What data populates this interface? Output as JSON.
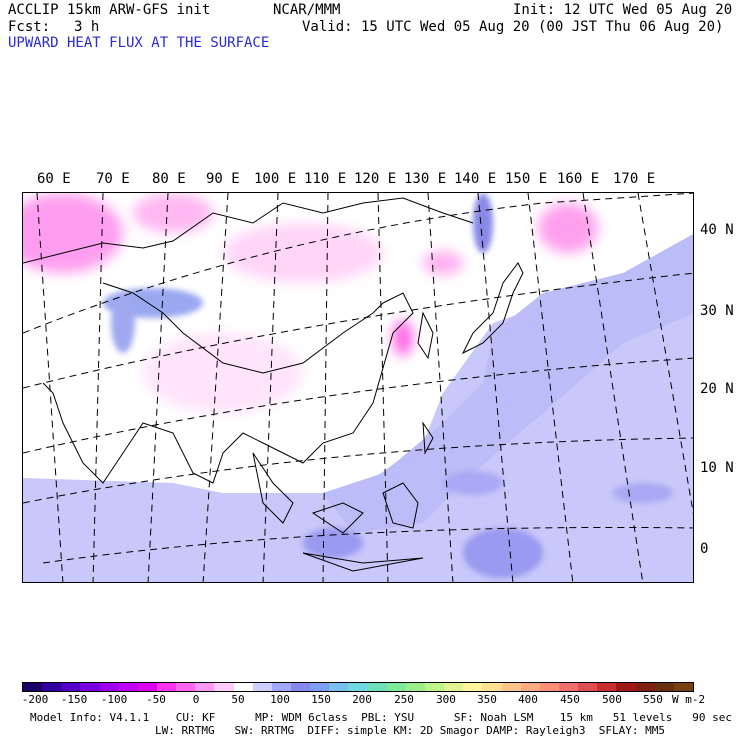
{
  "header": {
    "model": "ACCLIP 15km ARW-GFS init",
    "center": "NCAR/MMM",
    "init": "Init: 12 UTC Wed 05 Aug 20",
    "fcst_label": "Fcst:",
    "fcst_value": "3 h",
    "valid": "Valid: 15 UTC Wed 05 Aug 20 (00 JST Thu 06 Aug 20)",
    "field": "UPWARD HEAT FLUX AT THE SURFACE"
  },
  "longitude_labels": [
    "60 E",
    "70 E",
    "80 E",
    "90 E",
    "100 E",
    "110 E",
    "120 E",
    "130 E",
    "140 E",
    "150 E",
    "160 E",
    "170 E"
  ],
  "latitude_labels": [
    "40 N",
    "30 N",
    "20 N",
    "10 N",
    "0"
  ],
  "colorbar": {
    "ticks": [
      "-200",
      "-150",
      "-100",
      "-50",
      "0",
      "50",
      "100",
      "150",
      "200",
      "250",
      "300",
      "350",
      "400",
      "450",
      "500",
      "550"
    ],
    "unit": "W m-2",
    "range": [
      -200,
      600
    ],
    "colors": [
      "#1a0066",
      "#3300a0",
      "#5500c8",
      "#7a00e0",
      "#a000f0",
      "#c000f5",
      "#e000f0",
      "#ff33ee",
      "#ff66f0",
      "#ff99f5",
      "#ffccfa",
      "#ffffff",
      "#ccd0ff",
      "#a0a8ff",
      "#8888f0",
      "#7f9ff5",
      "#77c0f0",
      "#70d8e0",
      "#6ee0b8",
      "#7fe89a",
      "#99f088",
      "#bff588",
      "#e0f590",
      "#fff59a",
      "#ffe090",
      "#ffc488",
      "#ffaa80",
      "#ff9078",
      "#f07070",
      "#e05050",
      "#c83030",
      "#a01818",
      "#802010",
      "#683010",
      "#7a4010"
    ]
  },
  "footer": {
    "line1": "Model Info: V4.1.1    CU: KF      MP: WDM 6class  PBL: YSU      SF: Noah LSM    15 km   51 levels   90 sec",
    "line2": "LW: RRTMG   SW: RRTMG  DIFF: simple KM: 2D Smagor DAMP: Rayleigh3  SFLAY: MM5"
  }
}
